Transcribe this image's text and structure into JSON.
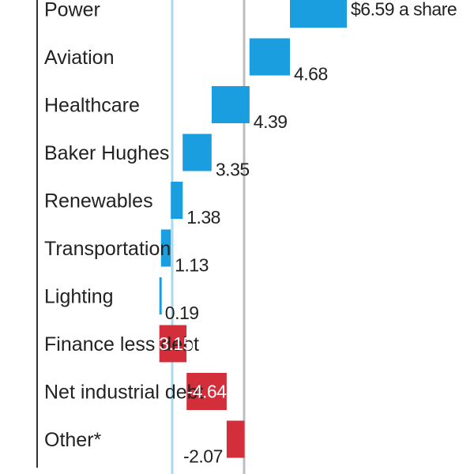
{
  "chart_data": {
    "type": "bar",
    "subtype": "waterfall",
    "orientation": "horizontal",
    "categories": [
      "Power",
      "Aviation",
      "Healthcare",
      "Baker Hughes",
      "Renewables",
      "Transportation",
      "Lighting",
      "Finance less debt",
      "Net industrial debt",
      "Other*"
    ],
    "values": [
      6.59,
      4.68,
      4.39,
      3.35,
      1.38,
      1.13,
      0.19,
      -3.15,
      -4.64,
      -2.07
    ],
    "value_labels": [
      "$6.59 a share",
      "4.68",
      "4.39",
      "3.35",
      "1.38",
      "1.13",
      "0.19",
      "-3.15",
      "-4.64",
      "-2.07"
    ],
    "positive_color": "#1a9ee0",
    "negative_color": "#d32f3b",
    "value_label_inside": [
      false,
      false,
      false,
      false,
      false,
      false,
      false,
      true,
      true,
      false
    ],
    "grid": false,
    "legend": "none"
  }
}
